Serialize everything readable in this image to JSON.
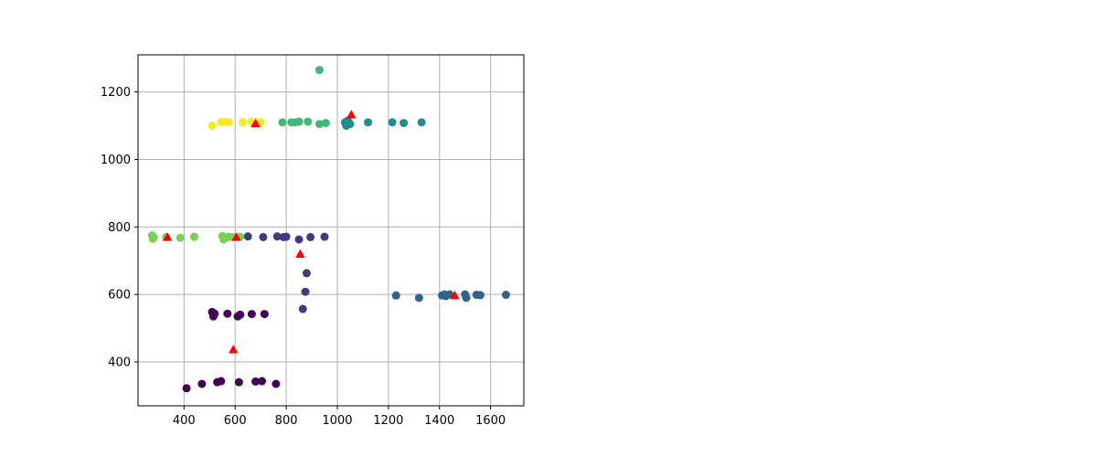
{
  "chart_data": {
    "type": "scatter",
    "title": "",
    "xlabel": "",
    "ylabel": "",
    "xlim": [
      220,
      1730
    ],
    "ylim": [
      270,
      1310
    ],
    "xticks": [
      "400",
      "600",
      "800",
      "1000",
      "1200",
      "1400",
      "1600"
    ],
    "yticks": [
      "400",
      "600",
      "800",
      "1000",
      "1200"
    ],
    "grid": true,
    "legend": "none",
    "colormap": "viridis",
    "series": [
      {
        "color": "#440154",
        "points": [
          [
            410,
            322
          ],
          [
            470,
            335
          ],
          [
            530,
            340
          ],
          [
            545,
            343
          ],
          [
            615,
            340
          ],
          [
            680,
            342
          ],
          [
            705,
            343
          ],
          [
            760,
            335
          ],
          [
            510,
            548
          ],
          [
            515,
            535
          ],
          [
            520,
            543
          ],
          [
            570,
            543
          ],
          [
            610,
            535
          ],
          [
            620,
            540
          ],
          [
            665,
            542
          ],
          [
            715,
            542
          ]
        ]
      },
      {
        "color": "#453781",
        "points": [
          [
            650,
            772
          ],
          [
            710,
            770
          ],
          [
            765,
            772
          ],
          [
            790,
            770
          ],
          [
            800,
            771
          ],
          [
            850,
            763
          ],
          [
            895,
            770
          ],
          [
            950,
            771
          ],
          [
            865,
            557
          ],
          [
            875,
            608
          ],
          [
            880,
            663
          ]
        ]
      },
      {
        "color": "#33638d",
        "points": [
          [
            1230,
            597
          ],
          [
            1320,
            590
          ],
          [
            1410,
            597
          ],
          [
            1420,
            600
          ],
          [
            1425,
            595
          ],
          [
            1440,
            600
          ],
          [
            1500,
            600
          ],
          [
            1505,
            590
          ],
          [
            1545,
            599
          ],
          [
            1560,
            598
          ],
          [
            1660,
            599
          ]
        ]
      },
      {
        "color": "#238a8d",
        "points": [
          [
            1030,
            1110
          ],
          [
            1035,
            1100
          ],
          [
            1045,
            1110
          ],
          [
            1050,
            1105
          ],
          [
            1120,
            1110
          ],
          [
            1215,
            1110
          ],
          [
            1260,
            1108
          ],
          [
            1330,
            1110
          ],
          [
            1040,
            1115
          ]
        ]
      },
      {
        "color": "#3cbb75",
        "points": [
          [
            785,
            1110
          ],
          [
            820,
            1110
          ],
          [
            835,
            1110
          ],
          [
            850,
            1112
          ],
          [
            885,
            1112
          ],
          [
            930,
            1105
          ],
          [
            955,
            1108
          ],
          [
            930,
            1265
          ]
        ]
      },
      {
        "color": "#7ad151",
        "points": [
          [
            275,
            775
          ],
          [
            278,
            765
          ],
          [
            282,
            770
          ],
          [
            330,
            770
          ],
          [
            385,
            768
          ],
          [
            440,
            771
          ],
          [
            550,
            773
          ],
          [
            555,
            763
          ],
          [
            565,
            768
          ],
          [
            575,
            771
          ],
          [
            590,
            770
          ],
          [
            620,
            771
          ]
        ]
      },
      {
        "color": "#fde725",
        "points": [
          [
            510,
            1100
          ],
          [
            545,
            1110
          ],
          [
            560,
            1112
          ],
          [
            575,
            1110
          ],
          [
            630,
            1110
          ],
          [
            665,
            1112
          ],
          [
            675,
            1105
          ],
          [
            685,
            1110
          ],
          [
            700,
            1110
          ]
        ]
      }
    ],
    "centroids": {
      "color": "#ff0000",
      "marker": "triangle",
      "points": [
        [
          1055,
          1133
        ],
        [
          680,
          1107
        ],
        [
          335,
          770
        ],
        [
          605,
          770
        ],
        [
          855,
          720
        ],
        [
          1460,
          597
        ],
        [
          593,
          437
        ]
      ]
    }
  }
}
